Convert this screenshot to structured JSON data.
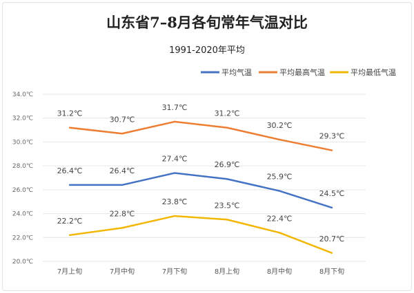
{
  "chart_data": {
    "type": "line",
    "title": "山东省7–8月各旬常年气温对比",
    "subtitle": "1991-2020年平均",
    "xlabel": "",
    "ylabel": "",
    "categories": [
      "7月上旬",
      "7月中旬",
      "7月下旬",
      "8月上旬",
      "8月中旬",
      "8月下旬"
    ],
    "ylim": [
      20,
      34
    ],
    "yticks": [
      "20.0℃",
      "22.0℃",
      "24.0℃",
      "26.0℃",
      "28.0℃",
      "30.0℃",
      "32.0℃",
      "34.0℃"
    ],
    "ytick_values": [
      20,
      22,
      24,
      26,
      28,
      30,
      32,
      34
    ],
    "grid": true,
    "legend_position": "top-right",
    "unit": "℃",
    "series": [
      {
        "name": "平均气温",
        "color": "#4472c4",
        "values": [
          26.4,
          26.4,
          27.4,
          26.9,
          25.9,
          24.5
        ],
        "labels": [
          "26.4℃",
          "26.4℃",
          "27.4℃",
          "26.9℃",
          "25.9℃",
          "24.5℃"
        ]
      },
      {
        "name": "平均最高气温",
        "color": "#ed7d31",
        "values": [
          31.2,
          30.7,
          31.7,
          31.2,
          30.2,
          29.3
        ],
        "labels": [
          "31.2℃",
          "30.7℃",
          "31.7℃",
          "31.2℃",
          "30.2℃",
          "29.3℃"
        ]
      },
      {
        "name": "平均最低气温",
        "color": "#f2b705",
        "values": [
          22.2,
          22.8,
          23.8,
          23.5,
          22.4,
          20.7
        ],
        "labels": [
          "22.2℃",
          "22.8℃",
          "23.8℃",
          "23.5℃",
          "22.4℃",
          "20.7℃"
        ]
      }
    ]
  }
}
